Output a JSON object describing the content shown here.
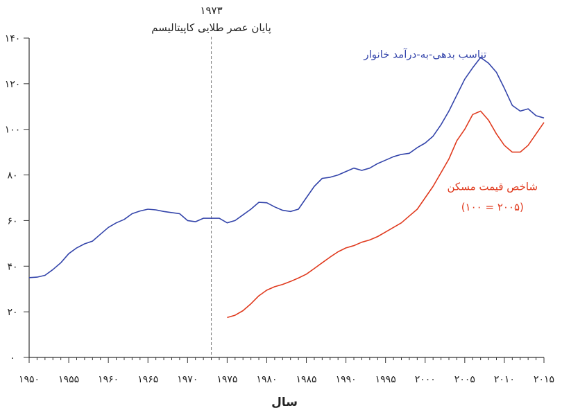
{
  "chart_data": {
    "type": "line",
    "title": "",
    "xlabel": "سال",
    "ylabel": "",
    "xlim": [
      1950,
      2015
    ],
    "ylim": [
      0,
      140
    ],
    "x_ticks": [
      1950,
      1955,
      1960,
      1965,
      1970,
      1975,
      1980,
      1985,
      1990,
      1995,
      2000,
      2005,
      2010,
      2015
    ],
    "x_tick_labels": [
      "۱۹۵۰",
      "۱۹۵۵",
      "۱۹۶۰",
      "۱۹۶۵",
      "۱۹۷۰",
      "۱۹۷۵",
      "۱۹۸۰",
      "۱۹۸۵",
      "۱۹۹۰",
      "۱۹۹۵",
      "۲۰۰۰",
      "۲۰۰۵",
      "۲۰۱۰",
      "۲۰۱۵"
    ],
    "y_ticks": [
      0,
      20,
      40,
      60,
      80,
      100,
      120,
      140
    ],
    "y_tick_labels": [
      "۰",
      "۲۰",
      "۴۰",
      "۶۰",
      "۸۰",
      "۱۰۰",
      "۱۲۰",
      "۱۴۰"
    ],
    "grid": false,
    "annotation": {
      "x": 1973,
      "year_label": "۱۹۷۳",
      "text": "پایان عصر طلایی کاپیتالیسم"
    },
    "series": [
      {
        "name": "تناسب بدهی-به-درآمد خانوار",
        "color": "#3344aa",
        "x": [
          1950,
          1951,
          1952,
          1953,
          1954,
          1955,
          1956,
          1957,
          1958,
          1959,
          1960,
          1961,
          1962,
          1963,
          1964,
          1965,
          1966,
          1967,
          1968,
          1969,
          1970,
          1971,
          1972,
          1973,
          1974,
          1975,
          1976,
          1977,
          1978,
          1979,
          1980,
          1981,
          1982,
          1983,
          1984,
          1985,
          1986,
          1987,
          1988,
          1989,
          1990,
          1991,
          1992,
          1993,
          1994,
          1995,
          1996,
          1997,
          1998,
          1999,
          2000,
          2001,
          2002,
          2003,
          2004,
          2005,
          2006,
          2007,
          2008,
          2009,
          2010,
          2011,
          2012,
          2013,
          2014,
          2015
        ],
        "y": [
          35,
          35.2,
          36,
          38.5,
          41.5,
          45.5,
          48,
          49.8,
          51,
          54,
          57,
          59,
          60.5,
          63,
          64.2,
          65,
          64.7,
          64,
          63.5,
          63,
          60,
          59.5,
          61,
          61,
          61,
          59,
          60,
          62.5,
          65,
          68,
          67.8,
          66,
          64.5,
          64,
          65,
          70,
          75,
          78.5,
          79,
          80,
          81.5,
          83,
          82,
          83,
          85,
          86.5,
          88,
          89,
          89.5,
          92,
          94,
          97,
          102,
          108,
          115,
          122,
          127,
          131.5,
          129,
          125,
          118,
          110.5,
          108,
          109,
          106,
          105
        ]
      },
      {
        "name": "شاخص قیمت مسکن",
        "name_line2": "(۱۰۰ = ۲۰۰۵)",
        "color": "#e03a1e",
        "x": [
          1975,
          1976,
          1977,
          1978,
          1979,
          1980,
          1981,
          1982,
          1983,
          1984,
          1985,
          1986,
          1987,
          1988,
          1989,
          1990,
          1991,
          1992,
          1993,
          1994,
          1995,
          1996,
          1997,
          1998,
          1999,
          2000,
          2001,
          2002,
          2003,
          2004,
          2005,
          2006,
          2007,
          2008,
          2009,
          2010,
          2011,
          2012,
          2013,
          2014,
          2015
        ],
        "y": [
          17.5,
          18.5,
          20.5,
          23.5,
          27,
          29.5,
          31,
          32,
          33.3,
          34.8,
          36.5,
          39,
          41.5,
          44,
          46.3,
          48,
          49,
          50.5,
          51.5,
          53,
          55,
          57,
          59,
          62,
          65,
          70,
          75,
          81,
          87,
          95,
          100,
          106.5,
          108,
          104,
          98,
          93,
          90,
          90,
          93,
          98,
          103
        ]
      }
    ]
  }
}
